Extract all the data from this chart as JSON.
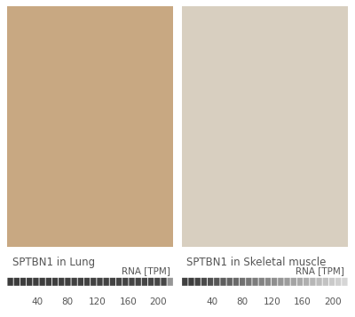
{
  "title_left": "SPTBN1 in Lung",
  "title_right": "SPTBN1 in Skeletal muscle",
  "rna_label": "RNA [TPM]",
  "tick_labels": [
    40,
    80,
    120,
    160,
    200
  ],
  "tick_positions": [
    40,
    80,
    120,
    160,
    200
  ],
  "bar_min": 0,
  "bar_max": 220,
  "n_segments": 26,
  "lung_value": 210,
  "skeletal_value": 10,
  "dark_color": "#3a3a3a",
  "light_color": "#d8d8d8",
  "bg_color": "#ffffff",
  "label_color": "#555555",
  "label_fontsize": 8.5,
  "rna_fontsize": 7.5,
  "tick_fontsize": 7.5,
  "image_bg_left": "#c8a882",
  "image_bg_right": "#d8cfc0"
}
